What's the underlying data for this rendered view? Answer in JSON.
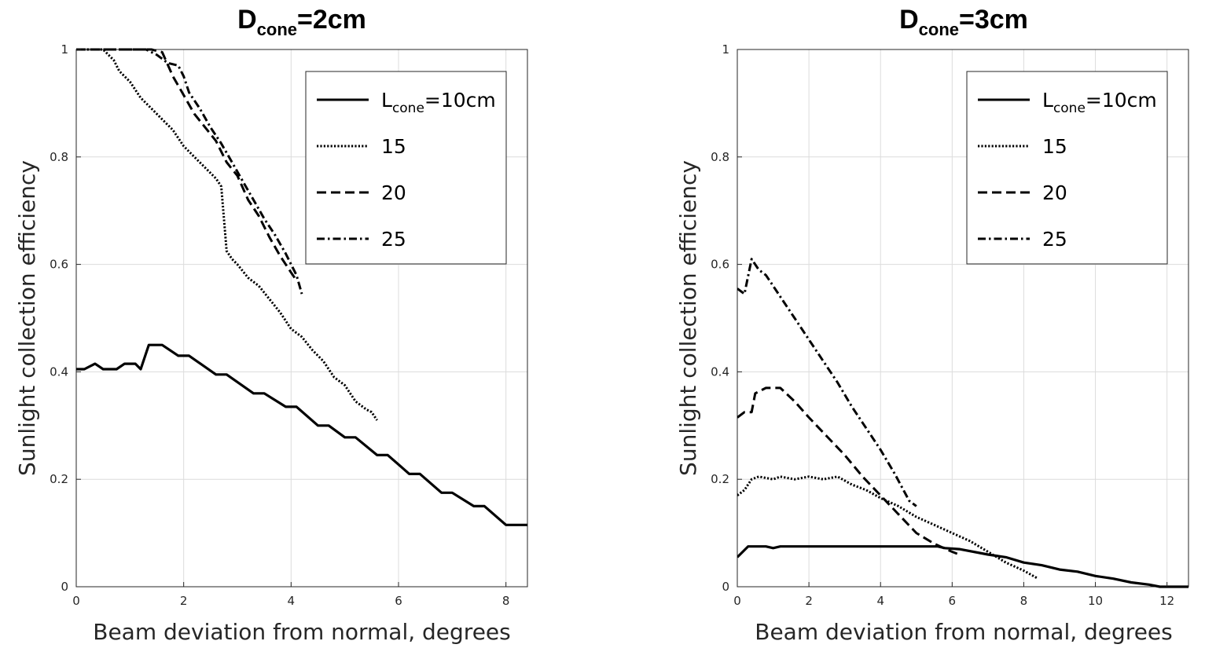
{
  "chart_data": [
    {
      "type": "line",
      "title": "D",
      "title_sub": "cone",
      "title_suffix": "=2cm",
      "xlabel": "Beam deviation from normal, degrees",
      "ylabel": "Sunlight collection efficiency",
      "xlim": [
        0,
        8.4
      ],
      "ylim": [
        0,
        1
      ],
      "xticks": [
        "0",
        "2",
        "4",
        "6",
        "8"
      ],
      "xtick_values": [
        0,
        2,
        4,
        6,
        8
      ],
      "yticks": [
        "0",
        "0.2",
        "0.4",
        "0.6",
        "0.8",
        "1"
      ],
      "ytick_values": [
        0,
        0.2,
        0.4,
        0.6,
        0.8,
        1
      ],
      "grid": true,
      "legend": "top-right",
      "legend_entries": [
        {
          "prefix": "L",
          "sub": "cone",
          "suffix": "=10cm",
          "style": "solid"
        },
        {
          "prefix": "15",
          "sub": "",
          "suffix": "",
          "style": "dotted"
        },
        {
          "prefix": "20",
          "sub": "",
          "suffix": "",
          "style": "dashed"
        },
        {
          "prefix": "25",
          "sub": "",
          "suffix": "",
          "style": "dashdot"
        }
      ],
      "series": [
        {
          "style": "solid",
          "x": [
            0,
            0.15,
            0.35,
            0.5,
            0.75,
            0.9,
            1.1,
            1.2,
            1.35,
            1.45,
            1.6,
            1.9,
            2.1,
            2.6,
            2.8,
            3.3,
            3.5,
            3.9,
            4.1,
            4.5,
            4.7,
            5.0,
            5.2,
            5.6,
            5.8,
            6.2,
            6.4,
            6.8,
            7.0,
            7.4,
            7.6,
            8.0,
            8.2,
            8.4
          ],
          "y": [
            0.405,
            0.405,
            0.415,
            0.405,
            0.405,
            0.415,
            0.415,
            0.405,
            0.45,
            0.45,
            0.45,
            0.43,
            0.43,
            0.395,
            0.395,
            0.36,
            0.36,
            0.335,
            0.335,
            0.3,
            0.3,
            0.278,
            0.278,
            0.245,
            0.245,
            0.21,
            0.21,
            0.175,
            0.175,
            0.15,
            0.15,
            0.115,
            0.115,
            0.115
          ]
        },
        {
          "style": "dotted",
          "x": [
            0,
            0.5,
            0.7,
            0.8,
            1.0,
            1.2,
            1.4,
            1.6,
            1.8,
            2.0,
            2.2,
            2.4,
            2.6,
            2.7,
            2.8,
            2.9,
            3.0,
            3.2,
            3.4,
            3.6,
            3.8,
            4.0,
            4.2,
            4.4,
            4.6,
            4.8,
            5.0,
            5.2,
            5.4,
            5.5,
            5.6
          ],
          "y": [
            1.0,
            1.0,
            0.98,
            0.96,
            0.94,
            0.91,
            0.89,
            0.87,
            0.85,
            0.82,
            0.8,
            0.78,
            0.76,
            0.745,
            0.625,
            0.61,
            0.6,
            0.575,
            0.56,
            0.535,
            0.51,
            0.48,
            0.465,
            0.44,
            0.42,
            0.39,
            0.375,
            0.345,
            0.33,
            0.325,
            0.31
          ]
        },
        {
          "style": "dashed",
          "x": [
            0,
            1.4,
            1.6,
            1.8,
            2.0,
            2.2,
            2.4,
            2.6,
            2.8,
            3.0,
            3.2,
            3.4,
            3.6,
            3.8,
            4.0,
            4.1
          ],
          "y": [
            1.0,
            1.0,
            0.995,
            0.95,
            0.915,
            0.88,
            0.855,
            0.83,
            0.79,
            0.765,
            0.72,
            0.69,
            0.65,
            0.615,
            0.585,
            0.57
          ]
        },
        {
          "style": "dashdot",
          "x": [
            0,
            1.3,
            1.5,
            1.7,
            1.9,
            2.0,
            2.1,
            2.3,
            2.5,
            2.7,
            2.9,
            3.1,
            3.3,
            3.5,
            3.7,
            3.9,
            4.1,
            4.2
          ],
          "y": [
            1.0,
            1.0,
            0.99,
            0.975,
            0.97,
            0.95,
            0.92,
            0.89,
            0.855,
            0.825,
            0.79,
            0.755,
            0.72,
            0.685,
            0.655,
            0.62,
            0.58,
            0.545
          ]
        }
      ]
    },
    {
      "type": "line",
      "title": "D",
      "title_sub": "cone",
      "title_suffix": "=3cm",
      "xlabel": "Beam deviation from normal, degrees",
      "ylabel": "Sunlight collection efficiency",
      "xlim": [
        0,
        12.6
      ],
      "ylim": [
        0,
        1
      ],
      "xticks": [
        "0",
        "2",
        "4",
        "6",
        "8",
        "10",
        "12"
      ],
      "xtick_values": [
        0,
        2,
        4,
        6,
        8,
        10,
        12
      ],
      "yticks": [
        "0",
        "0.2",
        "0.4",
        "0.6",
        "0.8",
        "1"
      ],
      "ytick_values": [
        0,
        0.2,
        0.4,
        0.6,
        0.8,
        1
      ],
      "grid": true,
      "legend": "top-right",
      "legend_entries": [
        {
          "prefix": "L",
          "sub": "cone",
          "suffix": "=10cm",
          "style": "solid"
        },
        {
          "prefix": "15",
          "sub": "",
          "suffix": "",
          "style": "dotted"
        },
        {
          "prefix": "20",
          "sub": "",
          "suffix": "",
          "style": "dashed"
        },
        {
          "prefix": "25",
          "sub": "",
          "suffix": "",
          "style": "dashdot"
        }
      ],
      "series": [
        {
          "style": "solid",
          "x": [
            0,
            0.3,
            0.5,
            0.8,
            1.0,
            1.2,
            1.4,
            2.0,
            3.0,
            4.0,
            5.0,
            5.6,
            5.8,
            6.2,
            7.0,
            7.5,
            8.0,
            8.5,
            9.0,
            9.5,
            10.0,
            10.5,
            11.0,
            11.5,
            11.8,
            12.0,
            12.6
          ],
          "y": [
            0.055,
            0.075,
            0.075,
            0.075,
            0.072,
            0.075,
            0.075,
            0.075,
            0.075,
            0.075,
            0.075,
            0.075,
            0.072,
            0.07,
            0.06,
            0.055,
            0.045,
            0.04,
            0.032,
            0.028,
            0.02,
            0.015,
            0.008,
            0.004,
            0.0,
            0.0,
            0.0
          ]
        },
        {
          "style": "dotted",
          "x": [
            0,
            0.2,
            0.4,
            0.6,
            1.0,
            1.2,
            1.6,
            2.0,
            2.4,
            2.8,
            3.2,
            3.6,
            4.0,
            4.5,
            5.0,
            5.5,
            6.0,
            6.5,
            7.0,
            7.5,
            8.0,
            8.4
          ],
          "y": [
            0.17,
            0.18,
            0.2,
            0.205,
            0.2,
            0.205,
            0.2,
            0.205,
            0.2,
            0.205,
            0.19,
            0.18,
            0.165,
            0.15,
            0.13,
            0.115,
            0.1,
            0.085,
            0.065,
            0.045,
            0.03,
            0.015
          ]
        },
        {
          "style": "dashed",
          "x": [
            0,
            0.2,
            0.4,
            0.5,
            0.8,
            1.2,
            1.6,
            2.0,
            2.5,
            3.0,
            3.5,
            4.0,
            4.5,
            5.0,
            5.5,
            6.0,
            6.2
          ],
          "y": [
            0.315,
            0.325,
            0.325,
            0.36,
            0.37,
            0.37,
            0.345,
            0.315,
            0.28,
            0.245,
            0.205,
            0.17,
            0.135,
            0.1,
            0.08,
            0.065,
            0.06
          ]
        },
        {
          "style": "dashdot",
          "x": [
            0,
            0.2,
            0.4,
            0.6,
            0.8,
            1.0,
            1.3,
            1.6,
            2.0,
            2.4,
            2.8,
            3.2,
            3.6,
            4.0,
            4.4,
            4.8,
            5.0
          ],
          "y": [
            0.555,
            0.545,
            0.61,
            0.59,
            0.58,
            0.56,
            0.53,
            0.5,
            0.46,
            0.42,
            0.38,
            0.335,
            0.295,
            0.255,
            0.21,
            0.16,
            0.15
          ]
        }
      ]
    }
  ]
}
